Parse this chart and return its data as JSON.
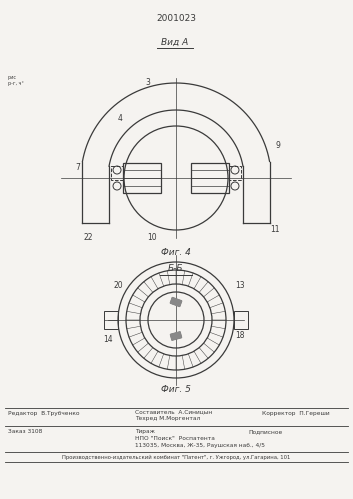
{
  "patent_number": "2001023",
  "bg_color": "#f5f3f0",
  "fig4_label": "Фиг. 4",
  "fig5_label": "Фиг. 5",
  "view_label": "Вид А",
  "section_label": "Б-Б",
  "label_3": "3",
  "label_4": "4",
  "label_7": "7",
  "label_9": "9",
  "label_10": "10",
  "label_11": "11",
  "label_22": "22",
  "label_13": "13",
  "label_14": "14",
  "label_18": "18",
  "label_20": "20",
  "footer_line1_left": "Редактор  В.Трубченко",
  "footer_line1_center_top": "Составитель  А.Синицын",
  "footer_line1_center_bot": "Техред М.Моргентал",
  "footer_line1_right": "Корректор  П.Гереши",
  "footer_line2_left": "Заказ 3108",
  "footer_line2_center1": "Тираж",
  "footer_line2_center2": "Подписное",
  "footer_line2_center3": "НПО \"Поиск\"  Роспатента",
  "footer_line2_center4": "113035, Москва, Ж-35, Раушская наб., 4/5",
  "footer_bottom": "Производственно-издательский комбинат \"Патент\", г. Ужгород, ул.Гагарина, 101",
  "draw_color": "#3a3a3a"
}
